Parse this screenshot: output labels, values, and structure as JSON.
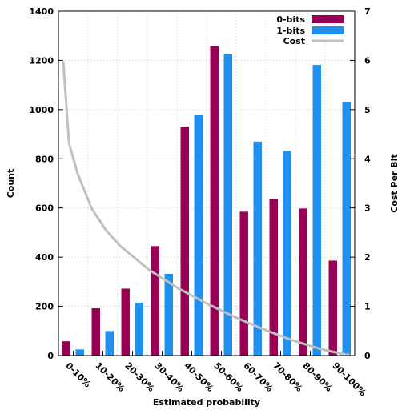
{
  "chart_data": {
    "type": "bar",
    "title": "",
    "xlabel": "Estimated probability",
    "ylabel": "Count",
    "y2label": "Cost Per Bit",
    "categories": [
      "0-10%",
      "10-20%",
      "20-30%",
      "30-40%",
      "40-50%",
      "50-60%",
      "60-70%",
      "70-80%",
      "80-90%",
      "90-100%"
    ],
    "series": [
      {
        "name": "0-bits",
        "type": "bar",
        "color": "#990055",
        "values": [
          58,
          192,
          272,
          445,
          930,
          1258,
          585,
          637,
          598,
          386
        ]
      },
      {
        "name": "1-bits",
        "type": "bar",
        "color": "#2090f0",
        "values": [
          25,
          100,
          215,
          332,
          978,
          1225,
          870,
          832,
          1182,
          1030
        ]
      },
      {
        "name": "Cost",
        "type": "line",
        "axis": "right",
        "color": "#c0c0c0",
        "x": [
          0,
          0.02,
          0.05,
          0.1,
          0.15,
          0.2,
          0.3,
          0.4,
          0.5,
          0.6,
          0.7,
          0.8,
          0.9,
          1.0
        ],
        "y": [
          5.98,
          4.32,
          3.7,
          2.98,
          2.54,
          2.22,
          1.74,
          1.37,
          1.06,
          0.78,
          0.53,
          0.31,
          0.13,
          0.0
        ]
      }
    ],
    "ylim": [
      0,
      1400
    ],
    "yticks": [
      "0",
      "200",
      "400",
      "600",
      "800",
      "1000",
      "1200",
      "1400"
    ],
    "y2lim": [
      0,
      7
    ],
    "y2ticks": [
      "0",
      "1",
      "2",
      "3",
      "4",
      "5",
      "6",
      "7"
    ],
    "grid": true,
    "legend": "top-right"
  }
}
